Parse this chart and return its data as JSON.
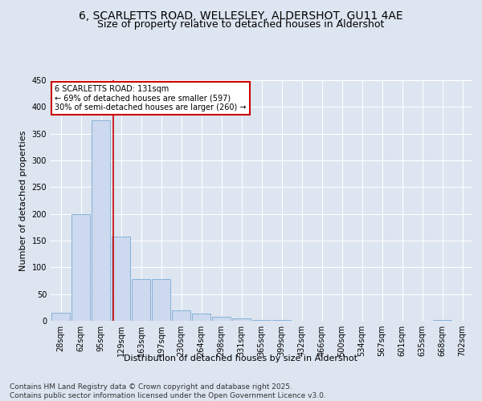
{
  "title_line1": "6, SCARLETTS ROAD, WELLESLEY, ALDERSHOT, GU11 4AE",
  "title_line2": "Size of property relative to detached houses in Aldershot",
  "xlabel": "Distribution of detached houses by size in Aldershot",
  "ylabel": "Number of detached properties",
  "categories": [
    "28sqm",
    "62sqm",
    "95sqm",
    "129sqm",
    "163sqm",
    "197sqm",
    "230sqm",
    "264sqm",
    "298sqm",
    "331sqm",
    "365sqm",
    "399sqm",
    "432sqm",
    "466sqm",
    "500sqm",
    "534sqm",
    "567sqm",
    "601sqm",
    "635sqm",
    "668sqm",
    "702sqm"
  ],
  "values": [
    15,
    200,
    375,
    158,
    78,
    78,
    20,
    13,
    7,
    5,
    2,
    2,
    0,
    0,
    0,
    0,
    0,
    0,
    0,
    2,
    0
  ],
  "bar_color": "#ccd9ee",
  "bar_edge_color": "#7aaad4",
  "vline_x": 2.6,
  "vline_color": "#cc0000",
  "annotation_text": "6 SCARLETTS ROAD: 131sqm\n← 69% of detached houses are smaller (597)\n30% of semi-detached houses are larger (260) →",
  "annotation_box_edgecolor": "#cc0000",
  "ylim": [
    0,
    450
  ],
  "yticks": [
    0,
    50,
    100,
    150,
    200,
    250,
    300,
    350,
    400,
    450
  ],
  "footer_text": "Contains HM Land Registry data © Crown copyright and database right 2025.\nContains public sector information licensed under the Open Government Licence v3.0.",
  "background_color": "#dde5f0",
  "plot_bg_color": "#dde5f0",
  "grid_color": "#ffffff",
  "title_fontsize": 10,
  "subtitle_fontsize": 9,
  "axis_label_fontsize": 8,
  "tick_fontsize": 7,
  "footer_fontsize": 6.5
}
